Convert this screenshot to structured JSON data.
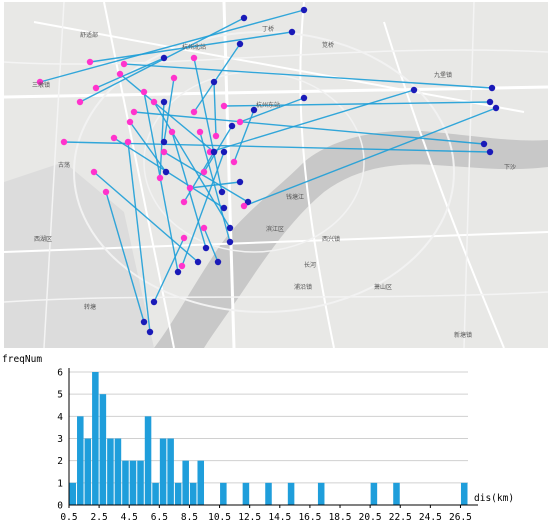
{
  "map": {
    "place_labels": [
      {
        "name": "mpl-1",
        "text": "舒适部"
      },
      {
        "name": "mpl-2",
        "text": "三墩镇"
      },
      {
        "name": "mpl-3",
        "text": "丁桥"
      },
      {
        "name": "mpl-4",
        "text": "九堡镇"
      },
      {
        "name": "mpl-5",
        "text": "杭州东站"
      },
      {
        "name": "mpl-6",
        "text": "杭州北站"
      },
      {
        "name": "mpl-7",
        "text": "笕桥"
      },
      {
        "name": "mpl-8",
        "text": "古荡"
      },
      {
        "name": "mpl-9",
        "text": "下沙"
      },
      {
        "name": "mpl-10",
        "text": "西湖区"
      },
      {
        "name": "mpl-11",
        "text": "钱塘江"
      },
      {
        "name": "mpl-12",
        "text": "滨江区"
      },
      {
        "name": "mpl-13",
        "text": "西兴镇"
      },
      {
        "name": "mpl-14",
        "text": "长河"
      },
      {
        "name": "mpl-15",
        "text": "浦沿镇"
      },
      {
        "name": "mpl-16",
        "text": "转塘"
      },
      {
        "name": "mpl-17",
        "text": "萧山区"
      },
      {
        "name": "mpl-18",
        "text": "新塘镇"
      }
    ],
    "colors": {
      "line": "#1e9fd8",
      "origin": "#ff33cc",
      "destination": "#1a1ab8",
      "river": "#c8c8c8",
      "road": "#ffffff"
    }
  },
  "chart_data": {
    "type": "bar",
    "ylabel": "freqNum",
    "xlabel": "dis(km)",
    "ylim": [
      0,
      6
    ],
    "xlim": [
      0.5,
      27.0
    ],
    "bin_width_km": 0.5,
    "yticks": [
      "0",
      "1",
      "2",
      "3",
      "4",
      "5",
      "6"
    ],
    "xticks": [
      "0.5",
      "2.5",
      "4.5",
      "6.5",
      "8.5",
      "10.5",
      "12.5",
      "14.5",
      "16.5",
      "18.5",
      "20.5",
      "22.5",
      "24.5",
      "26.5"
    ],
    "bins": [
      {
        "x": 1.0,
        "value": 1
      },
      {
        "x": 1.5,
        "value": 4
      },
      {
        "x": 2.0,
        "value": 3
      },
      {
        "x": 2.5,
        "value": 6
      },
      {
        "x": 3.0,
        "value": 5
      },
      {
        "x": 3.5,
        "value": 3
      },
      {
        "x": 4.0,
        "value": 3
      },
      {
        "x": 4.5,
        "value": 2
      },
      {
        "x": 5.0,
        "value": 2
      },
      {
        "x": 5.5,
        "value": 2
      },
      {
        "x": 6.0,
        "value": 4
      },
      {
        "x": 6.5,
        "value": 1
      },
      {
        "x": 7.0,
        "value": 3
      },
      {
        "x": 7.5,
        "value": 3
      },
      {
        "x": 8.0,
        "value": 1
      },
      {
        "x": 8.5,
        "value": 2
      },
      {
        "x": 9.0,
        "value": 1
      },
      {
        "x": 9.5,
        "value": 2
      },
      {
        "x": 11.0,
        "value": 1
      },
      {
        "x": 12.5,
        "value": 1
      },
      {
        "x": 14.0,
        "value": 1
      },
      {
        "x": 15.5,
        "value": 1
      },
      {
        "x": 17.5,
        "value": 1
      },
      {
        "x": 21.0,
        "value": 1
      },
      {
        "x": 22.5,
        "value": 1
      },
      {
        "x": 27.0,
        "value": 1
      }
    ],
    "bar_color": "#1f9edb",
    "grid": "horizontal"
  }
}
